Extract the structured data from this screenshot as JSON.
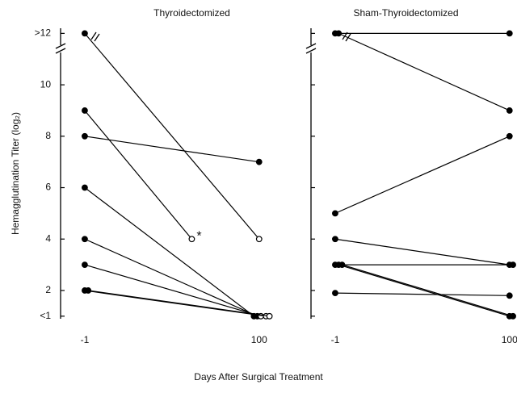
{
  "chart_data": [
    {
      "type": "line",
      "title": "Thyroidectomized",
      "color": "#000000",
      "tick_labels": true,
      "xlim": [
        -15,
        109
      ],
      "xticks": [
        -1,
        100
      ],
      "ylim": [
        0.9,
        12.2
      ],
      "yticks": [
        {
          "value": 1,
          "label": "<1"
        },
        2,
        4,
        6,
        8,
        10,
        {
          "value": 12,
          "label": ">12"
        }
      ],
      "series": [
        {
          "x": [
            -1,
            100
          ],
          "values": [
            12,
            4
          ],
          "hollow": [
            false,
            true
          ]
        },
        {
          "x": [
            -1,
            61
          ],
          "values": [
            9,
            4
          ],
          "hollow": [
            false,
            true
          ],
          "annotation": "*"
        },
        {
          "x": [
            -1,
            100
          ],
          "values": [
            8,
            7
          ],
          "hollow": [
            false,
            false
          ]
        },
        {
          "x": [
            -1,
            97
          ],
          "values": [
            6,
            1
          ],
          "hollow": [
            false,
            false
          ]
        },
        {
          "x": [
            -1,
            99
          ],
          "values": [
            4,
            1
          ],
          "hollow": [
            false,
            false
          ]
        },
        {
          "x": [
            -1,
            101
          ],
          "values": [
            3,
            1
          ],
          "hollow": [
            false,
            true
          ]
        },
        {
          "x": [
            -1,
            104
          ],
          "values": [
            2,
            1
          ],
          "hollow": [
            false,
            true
          ]
        },
        {
          "x": [
            1,
            106
          ],
          "values": [
            2,
            1
          ],
          "hollow": [
            false,
            true
          ]
        }
      ]
    },
    {
      "type": "line",
      "title": "Sham-Thyroidectomized",
      "color": "#000000",
      "tick_labels": false,
      "xlim": [
        -15,
        109
      ],
      "xticks": [
        -1,
        100
      ],
      "ylim": [
        0.9,
        12.2
      ],
      "yticks": [
        1,
        2,
        4,
        6,
        8,
        10,
        12
      ],
      "series": [
        {
          "x": [
            -1,
            100
          ],
          "values": [
            12,
            12
          ],
          "hollow": [
            false,
            false
          ]
        },
        {
          "x": [
            1,
            100
          ],
          "values": [
            12,
            9
          ],
          "hollow": [
            false,
            false
          ]
        },
        {
          "x": [
            -1,
            100
          ],
          "values": [
            5,
            8
          ],
          "hollow": [
            false,
            false
          ]
        },
        {
          "x": [
            -1,
            100
          ],
          "values": [
            4,
            3
          ],
          "hollow": [
            false,
            false
          ]
        },
        {
          "x": [
            -1,
            102
          ],
          "values": [
            3,
            3
          ],
          "hollow": [
            false,
            false
          ]
        },
        {
          "x": [
            1,
            100
          ],
          "values": [
            3,
            1
          ],
          "hollow": [
            false,
            false
          ]
        },
        {
          "x": [
            3,
            102
          ],
          "values": [
            3,
            1
          ],
          "hollow": [
            false,
            false
          ]
        },
        {
          "x": [
            -1,
            100
          ],
          "values": [
            1.9,
            1.8
          ],
          "hollow": [
            false,
            false
          ]
        }
      ]
    }
  ],
  "x_label": "Days After Surgical Treatment",
  "y_label": "Hemagglutination Titer (log₂)"
}
